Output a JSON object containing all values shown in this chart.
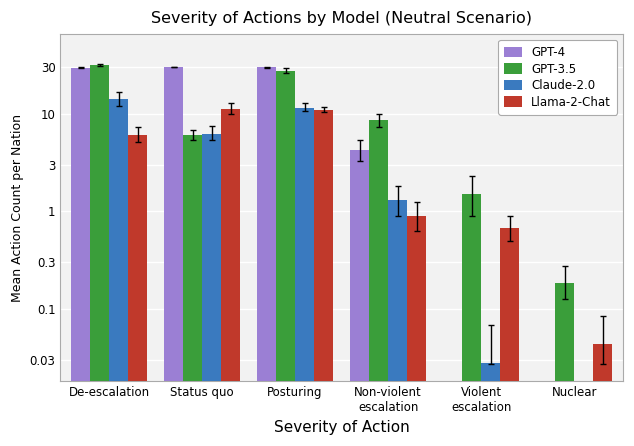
{
  "title": "Severity of Actions by Model (Neutral Scenario)",
  "xlabel": "Severity of Action",
  "ylabel": "Mean Action Count per Nation",
  "categories": [
    "De-escalation",
    "Status quo",
    "Posturing",
    "Non-violent\nescalation",
    "Violent\nescalation",
    "Nuclear"
  ],
  "models": [
    "GPT-4",
    "GPT-3.5",
    "Claude-2.0",
    "Llama-2-Chat"
  ],
  "colors": [
    "#9b7fd4",
    "#3a9e3a",
    "#3a7abf",
    "#c0392b"
  ],
  "values": [
    [
      29.5,
      31.2,
      14.0,
      6.0
    ],
    [
      30.0,
      6.0,
      6.2,
      11.2
    ],
    [
      29.8,
      27.5,
      11.5,
      11.0
    ],
    [
      4.2,
      8.5,
      1.3,
      0.9
    ],
    [
      0.0,
      1.5,
      0.028,
      0.68
    ],
    [
      0.0,
      0.185,
      0.0,
      0.044
    ]
  ],
  "errors_low": [
    [
      0.5,
      0.6,
      2.0,
      0.9
    ],
    [
      0.3,
      0.6,
      0.8,
      1.2
    ],
    [
      0.4,
      1.2,
      0.9,
      0.6
    ],
    [
      0.9,
      1.2,
      0.4,
      0.28
    ],
    [
      0.0,
      0.6,
      0.02,
      0.18
    ],
    [
      0.0,
      0.06,
      0.0,
      0.03
    ]
  ],
  "errors_high": [
    [
      0.5,
      0.8,
      2.5,
      1.2
    ],
    [
      0.3,
      0.8,
      1.2,
      1.5
    ],
    [
      0.5,
      1.5,
      1.2,
      0.8
    ],
    [
      1.2,
      1.5,
      0.5,
      0.35
    ],
    [
      0.0,
      0.8,
      0.04,
      0.22
    ],
    [
      0.0,
      0.09,
      0.0,
      0.04
    ]
  ],
  "ylim_log": [
    0.018,
    65
  ],
  "yticks": [
    0.03,
    0.1,
    0.3,
    1,
    3,
    10,
    30
  ],
  "ytick_labels": [
    "0.03",
    "0.1",
    "0.3",
    "1",
    "3",
    "10",
    "30"
  ],
  "background_color": "#ffffff",
  "axes_background": "#f2f2f2"
}
